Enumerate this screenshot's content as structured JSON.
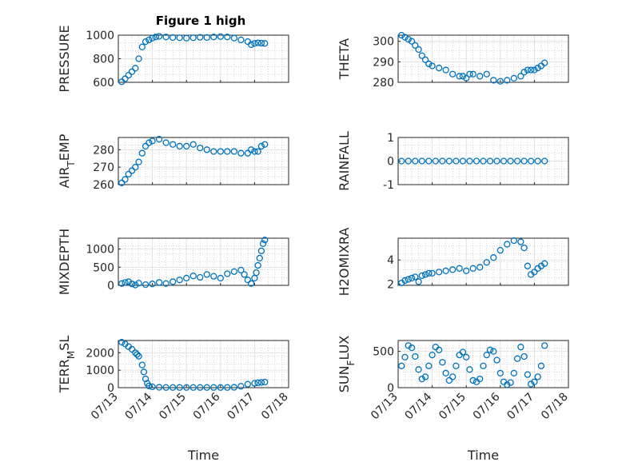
{
  "title": "Figure 1 high",
  "chart_data": [
    {
      "type": "scatter",
      "ylabel": "PRESSURE",
      "xlabel": "",
      "ylim": [
        600,
        1000
      ],
      "yticks": [
        600,
        800,
        1000
      ],
      "xticks": [
        "07/13",
        "07/14",
        "07/15",
        "07/16",
        "07/17",
        "07/18"
      ],
      "grid": true,
      "x": [
        13.1,
        13.2,
        13.3,
        13.4,
        13.5,
        13.6,
        13.7,
        13.8,
        13.9,
        14.0,
        14.1,
        14.2,
        14.4,
        14.6,
        14.8,
        15.0,
        15.2,
        15.4,
        15.6,
        15.8,
        16.0,
        16.2,
        16.4,
        16.6,
        16.8,
        16.9,
        17.0,
        17.1,
        17.2,
        17.3
      ],
      "y": [
        605,
        630,
        660,
        690,
        720,
        800,
        900,
        945,
        960,
        975,
        985,
        990,
        985,
        980,
        978,
        975,
        978,
        982,
        980,
        985,
        988,
        985,
        975,
        960,
        945,
        920,
        930,
        935,
        932,
        930
      ]
    },
    {
      "type": "scatter",
      "ylabel": "THETA",
      "xlabel": "",
      "ylim": [
        280,
        303
      ],
      "yticks": [
        280,
        290,
        300
      ],
      "xticks": [
        "07/13",
        "07/14",
        "07/15",
        "07/16",
        "07/17",
        "07/18"
      ],
      "grid": true,
      "x": [
        13.1,
        13.2,
        13.3,
        13.4,
        13.5,
        13.6,
        13.7,
        13.8,
        13.9,
        14.0,
        14.2,
        14.4,
        14.6,
        14.8,
        14.9,
        15.0,
        15.1,
        15.2,
        15.4,
        15.6,
        15.8,
        16.0,
        16.2,
        16.4,
        16.6,
        16.7,
        16.8,
        16.9,
        17.0,
        17.1,
        17.2,
        17.3
      ],
      "y": [
        303,
        302,
        301,
        300,
        298,
        296,
        293,
        291,
        289,
        288,
        287,
        286,
        284,
        283,
        283,
        282,
        284,
        284,
        283,
        284,
        281,
        280.5,
        281,
        282,
        283,
        285,
        286,
        286,
        286,
        287,
        288,
        289.5
      ]
    },
    {
      "type": "scatter",
      "ylabel": "AIR_TEMP",
      "xlabel": "",
      "ylim": [
        260,
        287
      ],
      "yticks": [
        260,
        270,
        280
      ],
      "xticks": [
        "07/13",
        "07/14",
        "07/15",
        "07/16",
        "07/17",
        "07/18"
      ],
      "grid": true,
      "x": [
        13.1,
        13.2,
        13.3,
        13.4,
        13.5,
        13.6,
        13.7,
        13.8,
        13.9,
        14.0,
        14.2,
        14.4,
        14.6,
        14.8,
        15.0,
        15.2,
        15.4,
        15.6,
        15.8,
        16.0,
        16.2,
        16.4,
        16.6,
        16.8,
        16.9,
        17.0,
        17.1,
        17.2,
        17.3
      ],
      "y": [
        261,
        263,
        266,
        268,
        270,
        273,
        278,
        282,
        284,
        285,
        286,
        284,
        283,
        282,
        282,
        283,
        281,
        280,
        279,
        279,
        279,
        279,
        278,
        278,
        280,
        279,
        279,
        282,
        283
      ]
    },
    {
      "type": "scatter",
      "ylabel": "RAINFALL",
      "xlabel": "",
      "ylim": [
        -1,
        1
      ],
      "yticks": [
        -1,
        0,
        1
      ],
      "xticks": [
        "07/13",
        "07/14",
        "07/15",
        "07/16",
        "07/17",
        "07/18"
      ],
      "grid": true,
      "x": [
        13.1,
        13.3,
        13.5,
        13.7,
        13.9,
        14.1,
        14.3,
        14.5,
        14.7,
        14.9,
        15.1,
        15.3,
        15.5,
        15.7,
        15.9,
        16.1,
        16.3,
        16.5,
        16.7,
        16.9,
        17.1,
        17.3
      ],
      "y": [
        0,
        0,
        0,
        0,
        0,
        0,
        0,
        0,
        0,
        0,
        0,
        0,
        0,
        0,
        0,
        0,
        0,
        0,
        0,
        0,
        0,
        0
      ]
    },
    {
      "type": "scatter",
      "ylabel": "MIXDEPTH",
      "xlabel": "",
      "ylim": [
        0,
        1300
      ],
      "yticks": [
        0,
        500,
        1000
      ],
      "xticks": [
        "07/13",
        "07/14",
        "07/15",
        "07/16",
        "07/17",
        "07/18"
      ],
      "grid": true,
      "x": [
        13.1,
        13.2,
        13.3,
        13.4,
        13.5,
        13.6,
        13.8,
        14.0,
        14.2,
        14.4,
        14.6,
        14.8,
        15.0,
        15.2,
        15.4,
        15.6,
        15.8,
        16.0,
        16.2,
        16.4,
        16.6,
        16.7,
        16.8,
        16.9,
        17.0,
        17.05,
        17.1,
        17.15,
        17.2,
        17.25,
        17.3
      ],
      "y": [
        50,
        80,
        100,
        40,
        10,
        60,
        20,
        40,
        80,
        50,
        100,
        150,
        200,
        260,
        220,
        300,
        250,
        200,
        320,
        380,
        420,
        300,
        150,
        50,
        200,
        350,
        550,
        750,
        950,
        1150,
        1250
      ]
    },
    {
      "type": "scatter",
      "ylabel": "H2OMIXRA",
      "xlabel": "",
      "ylim": [
        1.9,
        5.8
      ],
      "yticks": [
        2,
        4
      ],
      "xticks": [
        "07/13",
        "07/14",
        "07/15",
        "07/16",
        "07/17",
        "07/18"
      ],
      "grid": true,
      "x": [
        13.1,
        13.2,
        13.3,
        13.4,
        13.5,
        13.6,
        13.7,
        13.8,
        13.9,
        14.0,
        14.2,
        14.4,
        14.6,
        14.8,
        15.0,
        15.2,
        15.4,
        15.6,
        15.8,
        16.0,
        16.2,
        16.4,
        16.6,
        16.7,
        16.8,
        16.9,
        17.0,
        17.1,
        17.2,
        17.3
      ],
      "y": [
        2.1,
        2.3,
        2.4,
        2.5,
        2.6,
        2.2,
        2.7,
        2.8,
        2.9,
        2.9,
        3.0,
        3.1,
        3.2,
        3.3,
        3.1,
        3.3,
        3.4,
        3.8,
        4.2,
        4.8,
        5.3,
        5.6,
        5.5,
        5.0,
        3.5,
        2.8,
        3.0,
        3.3,
        3.5,
        3.7
      ]
    },
    {
      "type": "scatter",
      "ylabel": "TERR_MSL",
      "xlabel": "Time",
      "ylim": [
        0,
        2700
      ],
      "yticks": [
        0,
        1000,
        2000
      ],
      "xticks": [
        "07/13",
        "07/14",
        "07/15",
        "07/16",
        "07/17",
        "07/18"
      ],
      "grid": true,
      "x": [
        13.1,
        13.2,
        13.3,
        13.4,
        13.5,
        13.55,
        13.6,
        13.7,
        13.75,
        13.8,
        13.85,
        13.9,
        14.0,
        14.2,
        14.4,
        14.6,
        14.8,
        15.0,
        15.2,
        15.4,
        15.6,
        15.8,
        16.0,
        16.2,
        16.4,
        16.6,
        16.8,
        17.0,
        17.1,
        17.2,
        17.3
      ],
      "y": [
        2600,
        2500,
        2350,
        2200,
        2000,
        1900,
        1800,
        1300,
        900,
        500,
        250,
        100,
        50,
        20,
        10,
        10,
        10,
        10,
        10,
        10,
        10,
        10,
        10,
        10,
        20,
        80,
        200,
        250,
        280,
        300,
        320
      ]
    },
    {
      "type": "scatter",
      "ylabel": "SUN_FLUX",
      "xlabel": "Time",
      "ylim": [
        0,
        650
      ],
      "yticks": [
        0,
        500
      ],
      "xticks": [
        "07/13",
        "07/14",
        "07/15",
        "07/16",
        "07/17",
        "07/18"
      ],
      "grid": true,
      "x": [
        13.1,
        13.2,
        13.3,
        13.4,
        13.5,
        13.6,
        13.7,
        13.8,
        13.9,
        14.0,
        14.1,
        14.2,
        14.3,
        14.4,
        14.5,
        14.6,
        14.7,
        14.8,
        14.9,
        15.0,
        15.1,
        15.2,
        15.3,
        15.4,
        15.5,
        15.6,
        15.7,
        15.8,
        15.9,
        16.0,
        16.1,
        16.2,
        16.3,
        16.4,
        16.5,
        16.6,
        16.7,
        16.8,
        16.9,
        17.0,
        17.1,
        17.2,
        17.3
      ],
      "y": [
        300,
        420,
        580,
        550,
        430,
        250,
        120,
        150,
        300,
        450,
        560,
        520,
        350,
        200,
        100,
        150,
        300,
        450,
        490,
        420,
        250,
        100,
        80,
        120,
        300,
        450,
        520,
        500,
        380,
        200,
        80,
        40,
        70,
        200,
        400,
        560,
        430,
        180,
        50,
        80,
        150,
        300,
        580
      ]
    }
  ]
}
